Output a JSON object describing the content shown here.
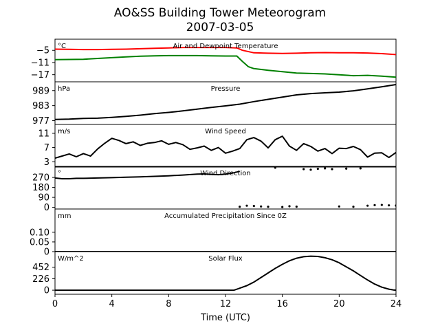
{
  "chart_data": {
    "type": "line",
    "title": "AO&SS Building Tower Meteorogram",
    "subtitle": "2007-03-05",
    "xlabel": "Time (UTC)",
    "xlim": [
      0,
      24
    ],
    "xticks": [
      0,
      4,
      8,
      12,
      16,
      20,
      24
    ],
    "panels": [
      {
        "title": "Air and Dewpoint Temperature",
        "unit": "°C",
        "ylim": [
          -20.5,
          0.5
        ],
        "yticks": [
          -5,
          -11,
          -17
        ],
        "series": [
          {
            "color": "#ff0000",
            "x": [
              0,
              1,
              2,
              3,
              4,
              5,
              6,
              7,
              8,
              9,
              10,
              11,
              12,
              12.8,
              13.2,
              14,
              15,
              16,
              17,
              18,
              19,
              20,
              21,
              22,
              23,
              24
            ],
            "y": [
              -4.4,
              -4.5,
              -4.6,
              -4.6,
              -4.5,
              -4.4,
              -4.2,
              -4.0,
              -3.8,
              -3.6,
              -3.6,
              -3.6,
              -3.6,
              -3.8,
              -5.0,
              -6.2,
              -6.4,
              -6.5,
              -6.4,
              -6.2,
              -6.1,
              -6.2,
              -6.2,
              -6.3,
              -6.6,
              -7.1
            ]
          },
          {
            "color": "#008000",
            "x": [
              0,
              1,
              2,
              3,
              4,
              5,
              6,
              7,
              8,
              9,
              10,
              11,
              12,
              12.8,
              13.2,
              13.6,
              14,
              15,
              16,
              17,
              18,
              19,
              20,
              21,
              22,
              23,
              24
            ],
            "y": [
              -9.6,
              -9.5,
              -9.4,
              -9.0,
              -8.6,
              -8.2,
              -7.9,
              -7.7,
              -7.6,
              -7.6,
              -7.6,
              -7.7,
              -7.8,
              -7.8,
              -10.5,
              -13.0,
              -14.0,
              -14.8,
              -15.5,
              -16.2,
              -16.4,
              -16.6,
              -17.0,
              -17.5,
              -17.3,
              -17.7,
              -18.2
            ]
          }
        ]
      },
      {
        "title": "Pressure",
        "unit": "hPa",
        "ylim": [
          975.5,
          992.5
        ],
        "yticks": [
          989,
          983,
          977
        ],
        "series": [
          {
            "color": "#000000",
            "x": [
              0,
              1,
              2,
              3,
              4,
              5,
              6,
              7,
              8,
              9,
              10,
              11,
              12,
              13,
              14,
              15,
              16,
              17,
              18,
              19,
              20,
              21,
              22,
              23,
              24
            ],
            "y": [
              977.5,
              977.6,
              977.9,
              978.0,
              978.3,
              978.7,
              979.2,
              979.8,
              980.3,
              980.9,
              981.6,
              982.3,
              982.9,
              983.6,
              984.6,
              985.5,
              986.4,
              987.3,
              987.8,
              988.1,
              988.4,
              988.9,
              989.7,
              990.5,
              991.4
            ]
          }
        ]
      },
      {
        "title": "Wind Speed",
        "unit": "m/s",
        "ylim": [
          1.5,
          13.5
        ],
        "yticks": [
          11,
          7,
          3
        ],
        "series": [
          {
            "color": "#000000",
            "x": [
              0,
              0.5,
              1,
              1.5,
              2,
              2.5,
              3,
              3.5,
              4,
              4.5,
              5,
              5.5,
              6,
              6.5,
              7,
              7.5,
              8,
              8.5,
              9,
              9.5,
              10,
              10.5,
              11,
              11.5,
              12,
              12.5,
              13,
              13.5,
              14,
              14.5,
              15,
              15.5,
              16,
              16.5,
              17,
              17.5,
              18,
              18.5,
              19,
              19.5,
              20,
              20.5,
              21,
              21.5,
              22,
              22.5,
              23,
              23.5,
              24
            ],
            "y": [
              4.0,
              4.6,
              5.2,
              4.4,
              5.3,
              4.6,
              6.6,
              8.2,
              9.6,
              9.0,
              8.1,
              8.6,
              7.6,
              8.2,
              8.4,
              8.9,
              7.9,
              8.4,
              7.8,
              6.5,
              6.9,
              7.4,
              6.2,
              7.0,
              5.4,
              6.0,
              6.7,
              9.2,
              9.8,
              8.8,
              6.9,
              9.2,
              10.2,
              7.4,
              6.2,
              8.1,
              7.3,
              6.0,
              6.7,
              5.3,
              6.8,
              6.7,
              7.3,
              6.4,
              4.3,
              5.4,
              5.5,
              4.2,
              5.6
            ]
          }
        ]
      },
      {
        "title": "Wind Direction",
        "unit": "°",
        "ylim": [
          -15,
          370
        ],
        "yticks": [
          270,
          180,
          90,
          0
        ],
        "series": [
          {
            "color": "#000000",
            "x": [
              0,
              0.5,
              1,
              1.5,
              2,
              3,
              4,
              5,
              6,
              7,
              8,
              9,
              10,
              10.5,
              11,
              11.5,
              12,
              12.5,
              13
            ],
            "y": [
              265,
              258,
              258,
              262,
              262,
              265,
              268,
              272,
              275,
              280,
              285,
              292,
              300,
              302,
              298,
              295,
              300,
              310,
              325
            ]
          },
          {
            "color": "#000000",
            "x": [
              13,
              13.5,
              14,
              14.5,
              15,
              15.5,
              16,
              16.5,
              17,
              17.5,
              18,
              18.5,
              19,
              19.5,
              20,
              20.5,
              21,
              21.5,
              22,
              22.5,
              23,
              23.5,
              24
            ],
            "y": [
              5,
              15,
              12,
              8,
              5,
              358,
              3,
              10,
              6,
              345,
              340,
              348,
              352,
              345,
              8,
              350,
              5,
              352,
              15,
              20,
              22,
              18,
              16
            ]
          }
        ]
      },
      {
        "title": "Accumulated Precipitation Since 0Z",
        "unit": "mm",
        "ylim": [
          0,
          0.22
        ],
        "yticks": [
          0.1,
          0.05,
          0.0
        ],
        "series": [
          {
            "color": "#000000",
            "x": [
              0,
              24
            ],
            "y": [
              0,
              0
            ]
          }
        ]
      },
      {
        "title": "Solar Flux",
        "unit": "W/m^2",
        "ylim": [
          -80,
          760
        ],
        "yticks": [
          452,
          226,
          0
        ],
        "series": [
          {
            "color": "#000000",
            "x": [
              0,
              12,
              12.6,
              12.9,
              13.2,
              13.5,
              14,
              14.5,
              15,
              15.5,
              16,
              16.5,
              17,
              17.5,
              18,
              18.5,
              19,
              19.5,
              20,
              20.5,
              21,
              21.5,
              22,
              22.5,
              23,
              23.5,
              23.8,
              24
            ],
            "y": [
              0,
              0,
              0,
              30,
              60,
              90,
              160,
              250,
              340,
              430,
              510,
              580,
              630,
              660,
              670,
              665,
              640,
              600,
              540,
              460,
              380,
              290,
              200,
              120,
              60,
              20,
              5,
              0
            ]
          }
        ]
      }
    ]
  }
}
